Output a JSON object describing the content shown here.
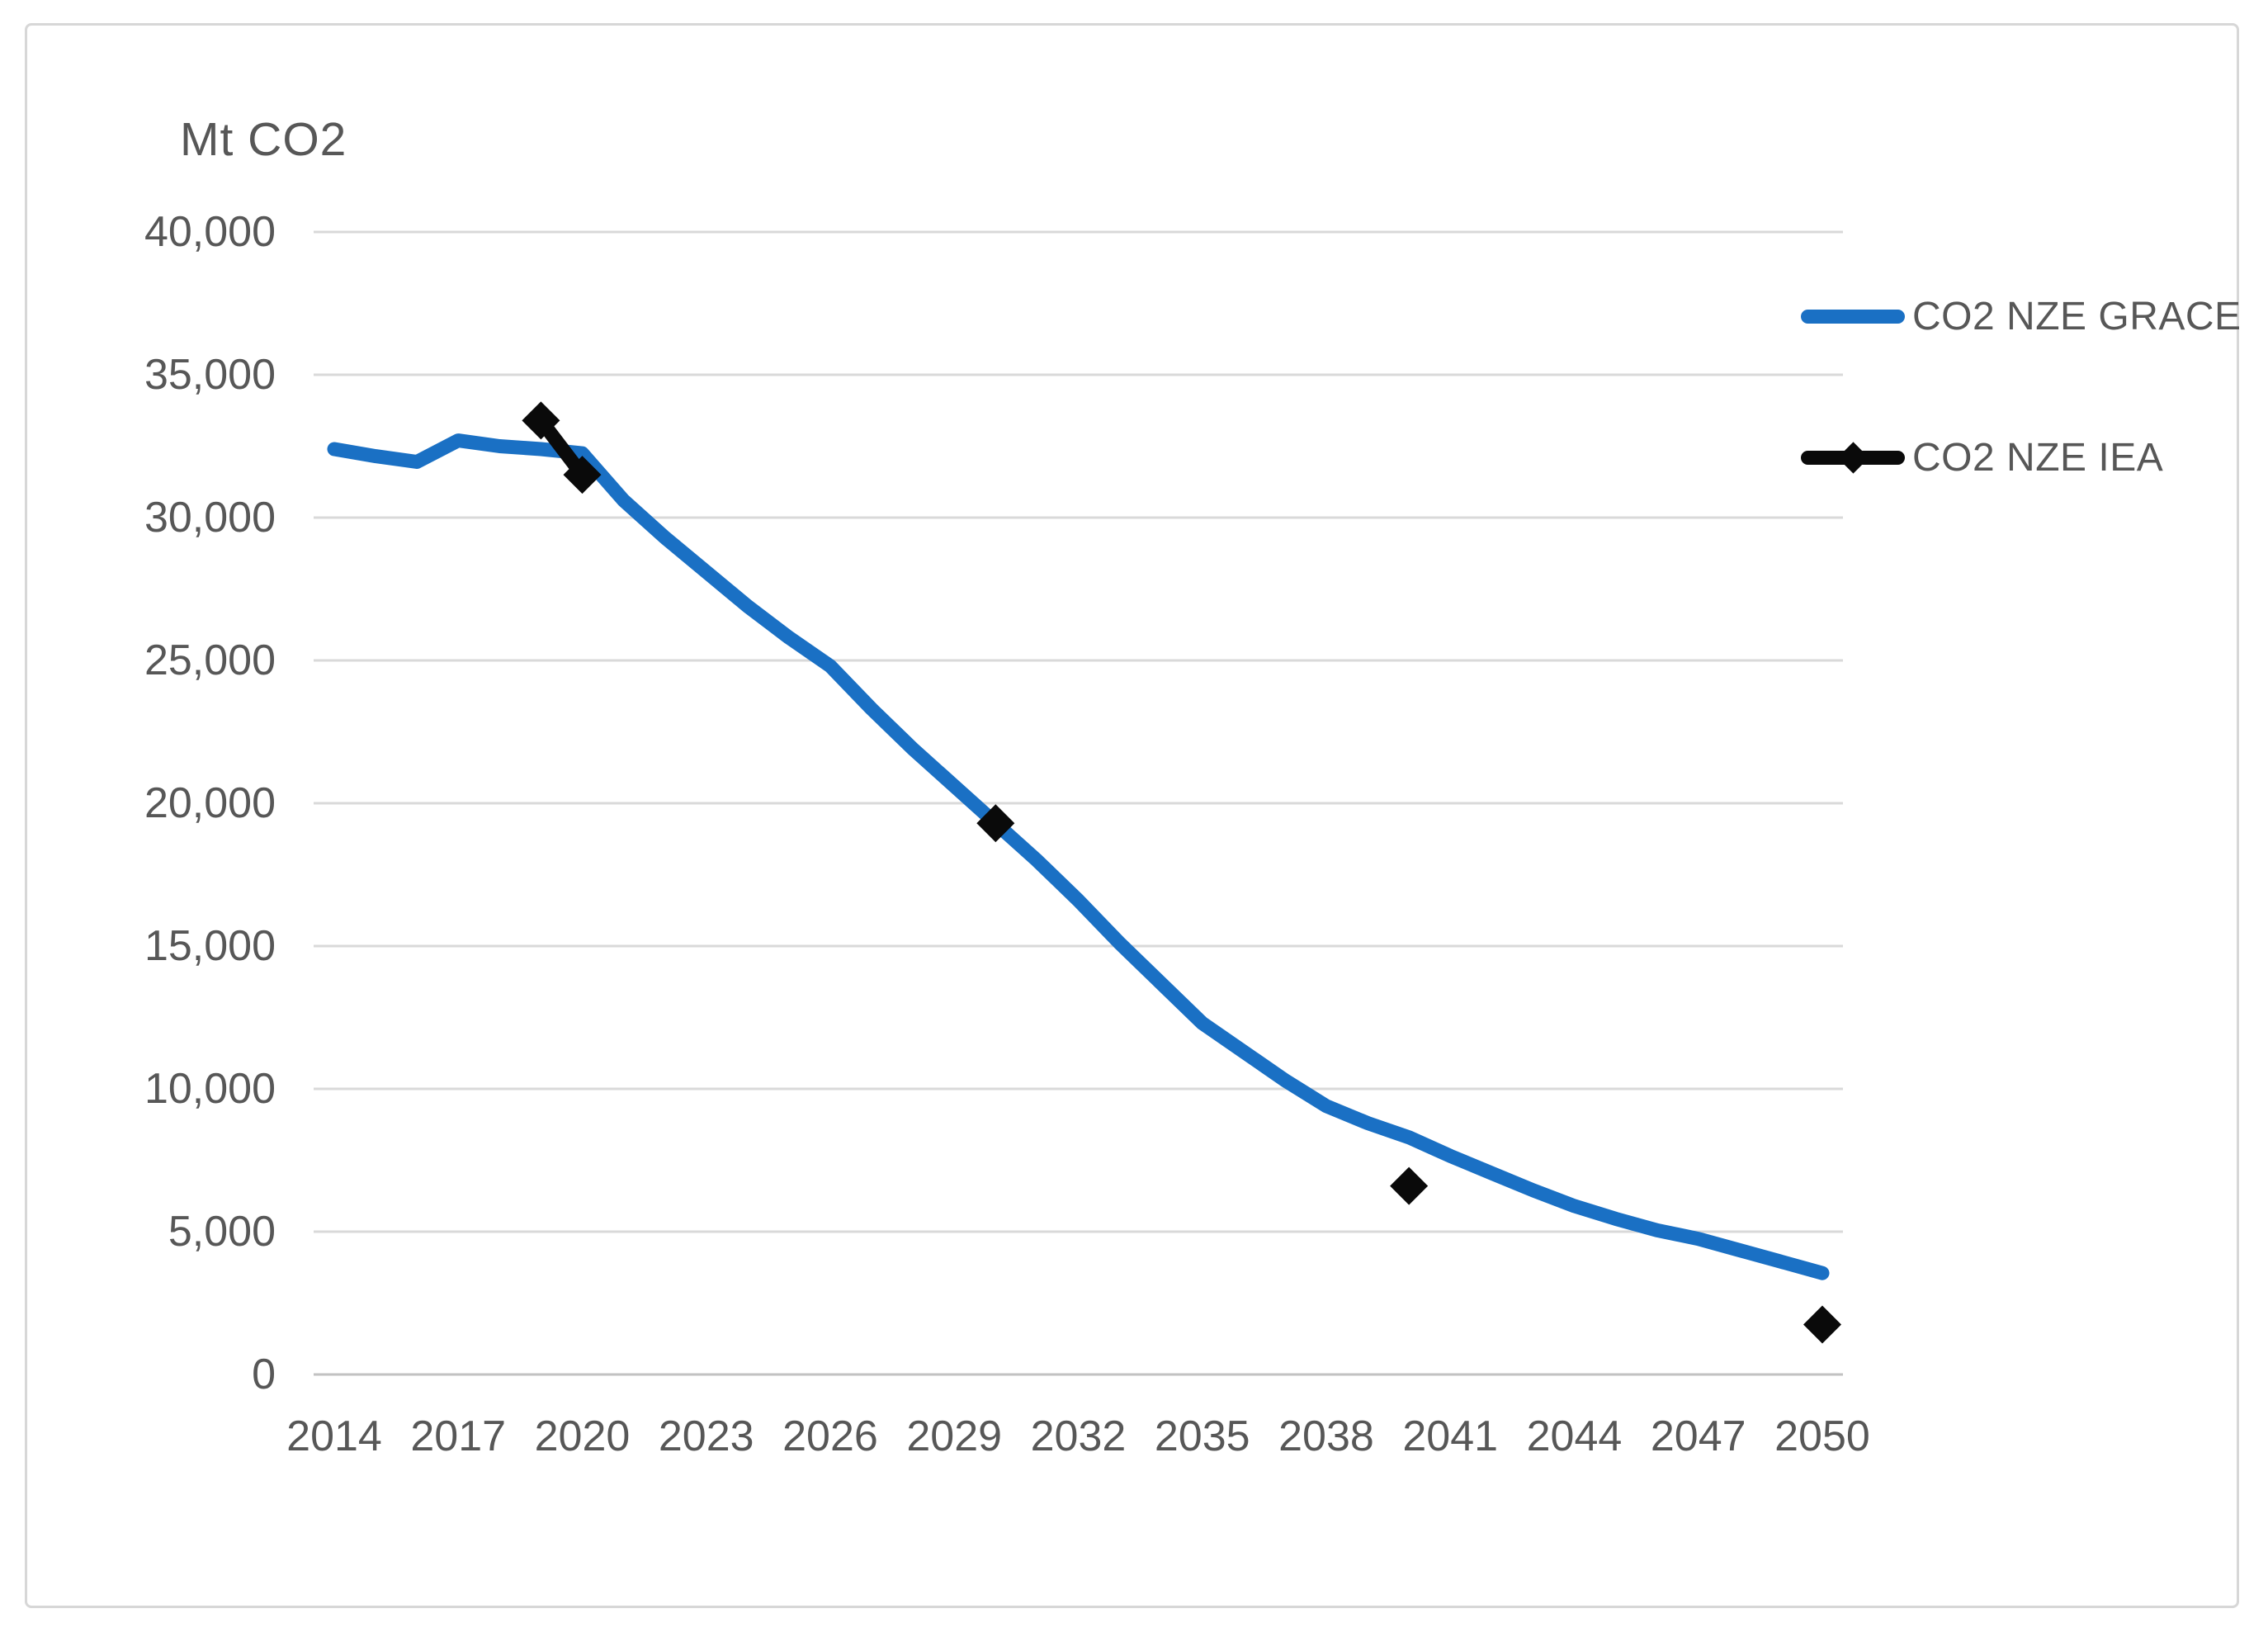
{
  "chart_data": {
    "type": "line",
    "title": "",
    "axis_title": "Mt CO2",
    "xlabel": "",
    "ylabel": "Mt CO2",
    "ylim": [
      0,
      40000
    ],
    "x_first_year": 2014,
    "x_last_year": 2050,
    "grid": "horizontal gridlines only",
    "legend_position": "right",
    "colors": {
      "grace_line": "#1A70C4",
      "iea_marker": "#0A0A0A",
      "gridline": "#D9D9D9",
      "axis_line": "#C2C2C2",
      "text": "#575757",
      "frame_border": "#D7D7D7"
    },
    "y_ticks": [
      {
        "value": 0,
        "label": "0"
      },
      {
        "value": 5000,
        "label": "5,000"
      },
      {
        "value": 10000,
        "label": "10,000"
      },
      {
        "value": 15000,
        "label": "15,000"
      },
      {
        "value": 20000,
        "label": "20,000"
      },
      {
        "value": 25000,
        "label": "25,000"
      },
      {
        "value": 30000,
        "label": "30,000"
      },
      {
        "value": 35000,
        "label": "35,000"
      },
      {
        "value": 40000,
        "label": "40,000"
      }
    ],
    "x_ticks": [
      {
        "year": 2014,
        "label": "2014"
      },
      {
        "year": 2017,
        "label": "2017"
      },
      {
        "year": 2020,
        "label": "2020"
      },
      {
        "year": 2023,
        "label": "2023"
      },
      {
        "year": 2026,
        "label": "2026"
      },
      {
        "year": 2029,
        "label": "2029"
      },
      {
        "year": 2032,
        "label": "2032"
      },
      {
        "year": 2035,
        "label": "2035"
      },
      {
        "year": 2038,
        "label": "2038"
      },
      {
        "year": 2041,
        "label": "2041"
      },
      {
        "year": 2044,
        "label": "2044"
      },
      {
        "year": 2047,
        "label": "2047"
      },
      {
        "year": 2050,
        "label": "2050"
      }
    ],
    "series": [
      {
        "name": "CO2 NZE GRACE",
        "style": "thick solid line, no markers",
        "color_key": "grace_line",
        "x": [
          2014,
          2015,
          2016,
          2017,
          2018,
          2019,
          2020,
          2021,
          2022,
          2023,
          2024,
          2025,
          2026,
          2027,
          2028,
          2029,
          2030,
          2031,
          2032,
          2033,
          2034,
          2035,
          2036,
          2037,
          2038,
          2039,
          2040,
          2041,
          2042,
          2043,
          2044,
          2045,
          2046,
          2047,
          2048,
          2049,
          2050
        ],
        "values": [
          32400,
          32150,
          31950,
          32700,
          32500,
          32400,
          32250,
          30600,
          29300,
          28100,
          26900,
          25800,
          24800,
          23300,
          21900,
          20600,
          19300,
          18000,
          16600,
          15100,
          13700,
          12300,
          11300,
          10300,
          9400,
          8800,
          8300,
          7650,
          7050,
          6450,
          5900,
          5450,
          5050,
          4750,
          4350,
          3950,
          3550
        ]
      },
      {
        "name": "CO2 NZE IEA",
        "style": "diamond markers, line only between adjacent years",
        "color_key": "iea_marker",
        "x": [
          2019,
          2020,
          2030,
          2040,
          2050
        ],
        "values": [
          33400,
          31500,
          19300,
          6600,
          1750
        ],
        "connected_segments": [
          [
            2019,
            2020
          ]
        ]
      }
    ]
  }
}
